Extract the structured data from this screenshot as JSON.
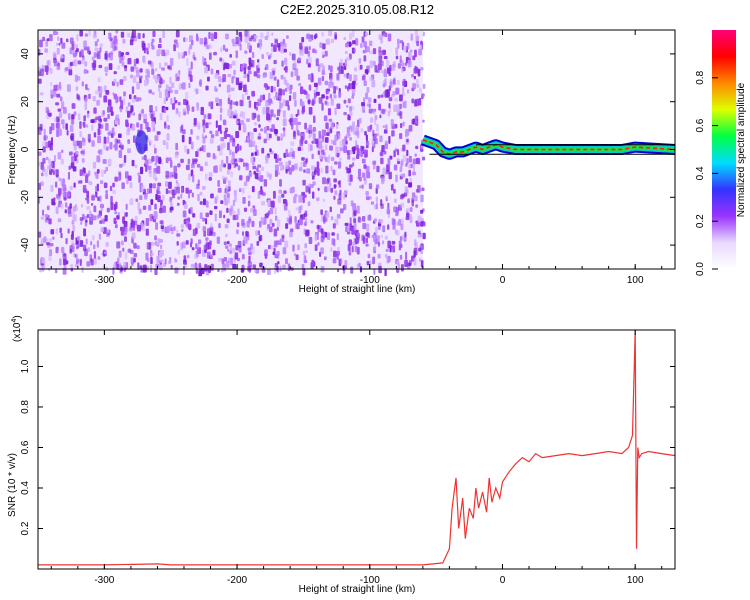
{
  "title": "C2E2.2025.310.05.08.R12",
  "chart_data": [
    {
      "type": "heatmap",
      "xlabel": "Height of straight line (km)",
      "ylabel": "Frequency (Hz)",
      "xlim": [
        -350,
        130
      ],
      "ylim": [
        -50,
        50
      ],
      "xticks": [
        -300,
        -200,
        -100,
        0,
        100
      ],
      "yticks": [
        -40,
        -20,
        0,
        20,
        40
      ],
      "xtick_labels": [
        "-300",
        "-200",
        "-100",
        "0",
        "100"
      ],
      "ytick_labels": [
        "-40",
        "-20",
        "0",
        "20",
        "40"
      ],
      "noise_region_x": [
        -350,
        -60
      ],
      "noise_signal_y": [
        [
          -60,
          4
        ],
        [
          -55,
          3
        ],
        [
          -50,
          2
        ],
        [
          -45,
          -1
        ],
        [
          -40,
          -2
        ],
        [
          -35,
          -1
        ],
        [
          -30,
          -1
        ],
        [
          -25,
          0
        ],
        [
          -20,
          1
        ],
        [
          -15,
          0
        ],
        [
          -10,
          1
        ],
        [
          -5,
          2
        ],
        [
          0,
          1
        ],
        [
          10,
          0
        ],
        [
          30,
          0
        ],
        [
          60,
          0
        ],
        [
          90,
          0
        ],
        [
          100,
          1
        ],
        [
          130,
          0
        ]
      ],
      "colorbar": {
        "label": "Normalized spectral amplitude",
        "range": [
          0,
          1
        ],
        "ticks": [
          0.0,
          0.2,
          0.4,
          0.6,
          0.8
        ],
        "tick_labels": [
          "0.0",
          "0.2",
          "0.4",
          "0.6",
          "0.8"
        ],
        "colors": [
          "#ffffff",
          "#e8d8ff",
          "#9933ff",
          "#3333ff",
          "#00ddff",
          "#00ff44",
          "#ddff00",
          "#ff8800",
          "#ff0000",
          "#ff0077"
        ]
      }
    },
    {
      "type": "line",
      "xlabel": "Height of straight line (km)",
      "ylabel": "SNR (10 * v/v)",
      "yscale_label": "(x10",
      "yscale_exp": "4",
      "xlim": [
        -350,
        130
      ],
      "ylim": [
        0,
        1.18
      ],
      "xticks": [
        -300,
        -200,
        -100,
        0,
        100
      ],
      "yticks": [
        0.2,
        0.4,
        0.6,
        0.8,
        1.0
      ],
      "xtick_labels": [
        "-300",
        "-200",
        "-100",
        "0",
        "100"
      ],
      "ytick_labels": [
        "0.2",
        "0.4",
        "0.6",
        "0.8",
        "1.0"
      ],
      "color": "#ee3333",
      "series": [
        {
          "x": [
            -350,
            -300,
            -260,
            -250,
            -200,
            -150,
            -100,
            -60,
            -45,
            -40,
            -38,
            -35,
            -33,
            -30,
            -28,
            -25,
            -22,
            -20,
            -18,
            -15,
            -12,
            -10,
            -8,
            -5,
            -2,
            0,
            5,
            10,
            15,
            20,
            25,
            30,
            40,
            50,
            60,
            70,
            80,
            90,
            95,
            98,
            100,
            101,
            102,
            103,
            105,
            110,
            120,
            130
          ],
          "y": [
            0.02,
            0.02,
            0.025,
            0.02,
            0.02,
            0.02,
            0.02,
            0.02,
            0.03,
            0.1,
            0.3,
            0.45,
            0.2,
            0.35,
            0.15,
            0.3,
            0.25,
            0.4,
            0.3,
            0.38,
            0.28,
            0.45,
            0.33,
            0.4,
            0.35,
            0.43,
            0.48,
            0.52,
            0.55,
            0.53,
            0.57,
            0.55,
            0.56,
            0.57,
            0.56,
            0.57,
            0.58,
            0.57,
            0.6,
            0.66,
            1.18,
            0.1,
            0.6,
            0.55,
            0.57,
            0.58,
            0.57,
            0.56
          ]
        }
      ]
    }
  ]
}
